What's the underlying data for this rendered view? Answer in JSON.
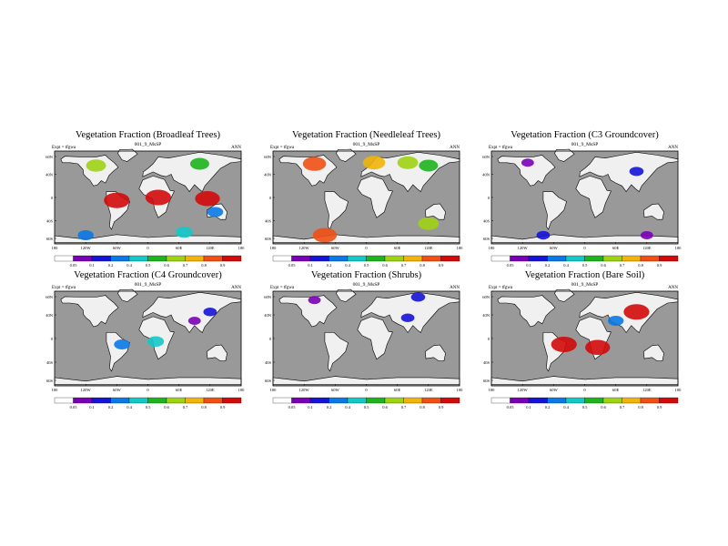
{
  "chart_data": [
    {
      "type": "heatmap",
      "title": "Vegetation Fraction (Broadleaf Trees)",
      "subtitle": "001_9_MsSP",
      "expt_label": "Expt = tfgwa",
      "period_label": "ANN",
      "x_ticks": [
        "180",
        "120W",
        "60W",
        "0",
        "60E",
        "120E",
        "180"
      ],
      "y_ticks": [
        "60N",
        "40N",
        "0",
        "40S",
        "60S"
      ],
      "colorbar_ticks": [
        "0.05",
        "0.1",
        "0.2",
        "0.4",
        "0.5",
        "0.6",
        "0.7",
        "0.8",
        "0.9"
      ],
      "regions": [
        {
          "lon": -60,
          "lat": -5,
          "value": 0.9
        },
        {
          "lon": 20,
          "lat": 0,
          "value": 0.9
        },
        {
          "lon": 115,
          "lat": -2,
          "value": 0.85
        },
        {
          "lon": 100,
          "lat": 58,
          "value": 0.5
        },
        {
          "lon": -100,
          "lat": 55,
          "value": 0.55
        },
        {
          "lon": 130,
          "lat": -25,
          "value": 0.3
        },
        {
          "lon": 70,
          "lat": -60,
          "value": 0.4
        },
        {
          "lon": -120,
          "lat": -65,
          "value": 0.3
        }
      ]
    },
    {
      "type": "heatmap",
      "title": "Vegetation Fraction (Needleleaf Trees)",
      "subtitle": "001_9_MsSP",
      "expt_label": "Expt = tfgwa",
      "period_label": "ANN",
      "x_ticks": [
        "180",
        "120W",
        "60W",
        "0",
        "60E",
        "120E",
        "180"
      ],
      "y_ticks": [
        "60N",
        "40N",
        "0",
        "40S",
        "60S"
      ],
      "colorbar_ticks": [
        "0.05",
        "0.1",
        "0.2",
        "0.4",
        "0.5",
        "0.6",
        "0.7",
        "0.8",
        "0.9"
      ],
      "regions": [
        {
          "lon": -100,
          "lat": 58,
          "value": 0.75
        },
        {
          "lon": 80,
          "lat": 60,
          "value": 0.6
        },
        {
          "lon": 120,
          "lat": 55,
          "value": 0.5
        },
        {
          "lon": 15,
          "lat": 60,
          "value": 0.7
        },
        {
          "lon": 120,
          "lat": -45,
          "value": 0.6
        },
        {
          "lon": -80,
          "lat": -65,
          "value": 0.8
        }
      ]
    },
    {
      "type": "heatmap",
      "title": "Vegetation Fraction (C3 Groundcover)",
      "subtitle": "001_9_MsSP",
      "expt_label": "Expt = tfgwa",
      "period_label": "ANN",
      "x_ticks": [
        "180",
        "120W",
        "60W",
        "0",
        "60E",
        "120E",
        "180"
      ],
      "y_ticks": [
        "60N",
        "40N",
        "0",
        "40S",
        "60S"
      ],
      "colorbar_ticks": [
        "0.05",
        "0.1",
        "0.2",
        "0.4",
        "0.5",
        "0.6",
        "0.7",
        "0.8",
        "0.9"
      ],
      "regions": [
        {
          "lon": 100,
          "lat": 45,
          "value": 0.2
        },
        {
          "lon": -110,
          "lat": 60,
          "value": 0.1
        },
        {
          "lon": -80,
          "lat": -65,
          "value": 0.15
        },
        {
          "lon": 120,
          "lat": -65,
          "value": 0.1
        }
      ]
    },
    {
      "type": "heatmap",
      "title": "Vegetation Fraction (C4 Groundcover)",
      "subtitle": "001_9_MsSP",
      "expt_label": "Expt = tfgwa",
      "period_label": "ANN",
      "x_ticks": [
        "180",
        "120W",
        "60W",
        "0",
        "60E",
        "120E",
        "180"
      ],
      "y_ticks": [
        "60N",
        "40N",
        "0",
        "40S",
        "60S"
      ],
      "colorbar_ticks": [
        "0.05",
        "0.1",
        "0.2",
        "0.4",
        "0.5",
        "0.6",
        "0.7",
        "0.8",
        "0.9"
      ],
      "regions": [
        {
          "lon": -50,
          "lat": -10,
          "value": 0.3
        },
        {
          "lon": 15,
          "lat": -5,
          "value": 0.35
        },
        {
          "lon": 90,
          "lat": 30,
          "value": 0.1
        },
        {
          "lon": 120,
          "lat": 45,
          "value": 0.15
        }
      ]
    },
    {
      "type": "heatmap",
      "title": "Vegetation Fraction (Shrubs)",
      "subtitle": "001_9_MsSP",
      "expt_label": "Expt = tfgwa",
      "period_label": "ANN",
      "x_ticks": [
        "180",
        "120W",
        "60W",
        "0",
        "60E",
        "120E",
        "180"
      ],
      "y_ticks": [
        "60N",
        "40N",
        "0",
        "40S",
        "60S"
      ],
      "colorbar_ticks": [
        "0.05",
        "0.1",
        "0.2",
        "0.4",
        "0.5",
        "0.6",
        "0.7",
        "0.8",
        "0.9"
      ],
      "regions": [
        {
          "lon": 100,
          "lat": 70,
          "value": 0.2
        },
        {
          "lon": -100,
          "lat": 65,
          "value": 0.1
        },
        {
          "lon": 80,
          "lat": 35,
          "value": 0.15
        }
      ]
    },
    {
      "type": "heatmap",
      "title": "Vegetation Fraction (Bare Soil)",
      "subtitle": "001_9_MsSP",
      "expt_label": "Expt = tfgwa",
      "period_label": "ANN",
      "x_ticks": [
        "180",
        "120W",
        "60W",
        "0",
        "60E",
        "120E",
        "180"
      ],
      "y_ticks": [
        "60N",
        "40N",
        "0",
        "40S",
        "60S"
      ],
      "colorbar_ticks": [
        "0.05",
        "0.1",
        "0.2",
        "0.4",
        "0.5",
        "0.6",
        "0.7",
        "0.8",
        "0.9"
      ],
      "regions": [
        {
          "lon": 100,
          "lat": 45,
          "value": 0.9
        },
        {
          "lon": -40,
          "lat": -10,
          "value": 0.9
        },
        {
          "lon": 25,
          "lat": -15,
          "value": 0.85
        },
        {
          "lon": 60,
          "lat": 30,
          "value": 0.3
        }
      ]
    }
  ],
  "palette": [
    "#ffffff",
    "#7a00b8",
    "#1414d8",
    "#0a78e6",
    "#14c8c8",
    "#1eb41e",
    "#a0d214",
    "#f0b40a",
    "#f05014",
    "#d20a0a"
  ],
  "ocean_color": "#999999",
  "land_color": "#f0f0f0"
}
